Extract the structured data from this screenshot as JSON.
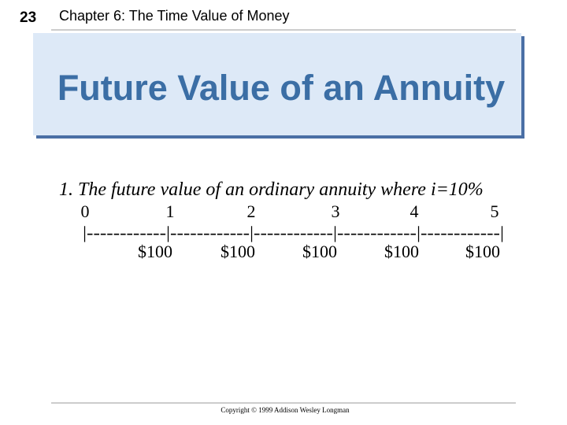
{
  "header": {
    "slide_number": "23",
    "chapter": "Chapter 6: The Time Value of Money"
  },
  "title": "Future Value of an Annuity",
  "item": "1.  The future value of an ordinary annuity where i=10%",
  "timeline": {
    "periods": [
      0,
      1,
      2,
      3,
      4,
      5
    ],
    "line": "|------------|------------|------------|------------|------------|",
    "payments": [
      "$100",
      "$100",
      "$100",
      "$100",
      "$100"
    ]
  },
  "footer": "Copyright © 1999 Addison Wesley Longman"
}
